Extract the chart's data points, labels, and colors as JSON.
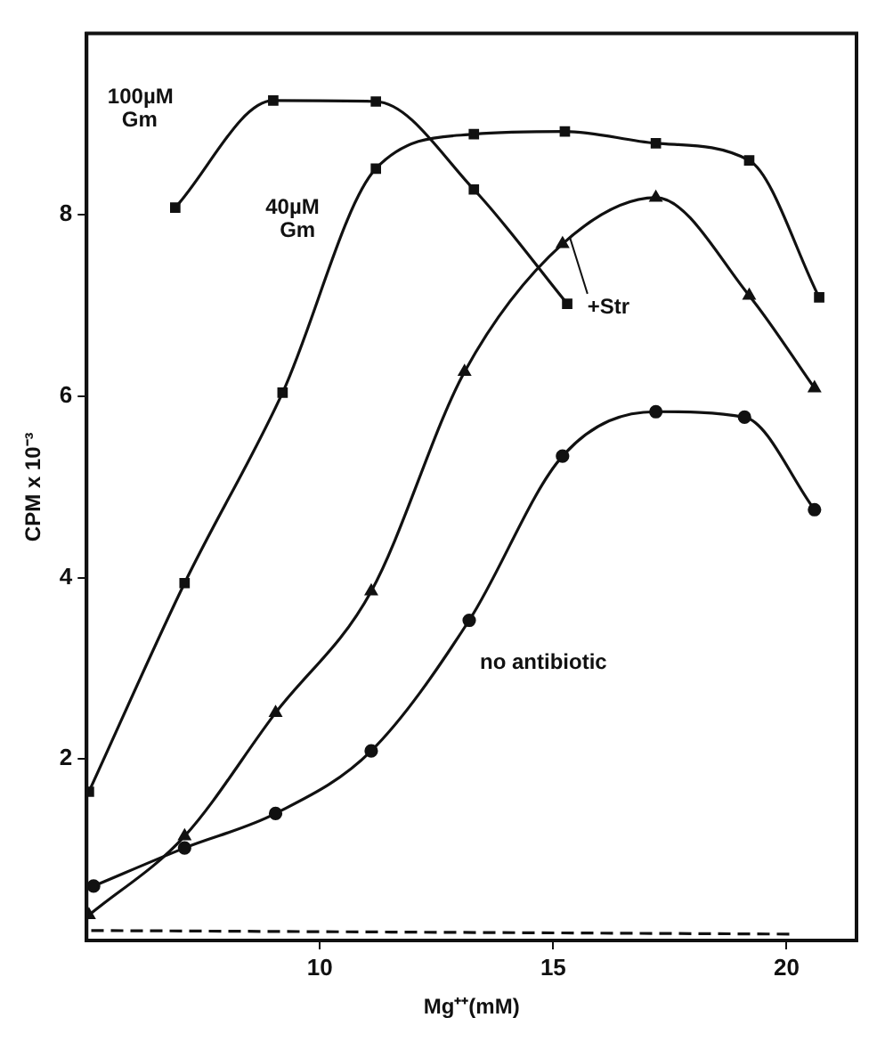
{
  "chart_data": {
    "type": "line",
    "xlabel": "Mg⁺⁺(mM)",
    "ylabel": "CPM x 10⁻³",
    "xlim": [
      5,
      21.5
    ],
    "ylim": [
      0,
      10
    ],
    "xticks": [
      10,
      15,
      20
    ],
    "yticks": [
      2,
      4,
      6,
      8
    ],
    "grid": false,
    "legend": false,
    "series": [
      {
        "name": "100µM Gm",
        "color": "#111111",
        "marker": "square",
        "x": [
          6.9,
          9.0,
          11.2,
          13.3,
          15.3
        ],
        "values": [
          8.08,
          9.26,
          9.25,
          8.28,
          7.02
        ]
      },
      {
        "name": "40µM Gm",
        "color": "#111111",
        "marker": "square",
        "x": [
          5.05,
          7.1,
          9.2,
          11.2,
          13.3,
          15.25,
          17.2,
          19.2,
          20.7
        ],
        "values": [
          1.64,
          3.94,
          6.04,
          8.51,
          8.89,
          8.92,
          8.79,
          8.6,
          7.09
        ]
      },
      {
        "name": "+Str",
        "color": "#111111",
        "marker": "triangle",
        "x": [
          5.05,
          7.1,
          9.05,
          11.1,
          13.1,
          15.2,
          17.2,
          19.2,
          20.6
        ],
        "values": [
          0.28,
          1.15,
          2.51,
          3.85,
          6.27,
          7.68,
          8.19,
          7.11,
          6.09
        ]
      },
      {
        "name": "no antibiotic",
        "color": "#111111",
        "marker": "circle",
        "x": [
          5.15,
          7.1,
          9.05,
          11.1,
          13.2,
          15.2,
          17.2,
          19.1,
          20.6
        ],
        "values": [
          0.6,
          1.02,
          1.4,
          2.09,
          3.53,
          5.34,
          5.83,
          5.77,
          4.75
        ]
      },
      {
        "color": "#111111",
        "marker": "none",
        "line_style": "dashed",
        "x": [
          5.1,
          20.15
        ],
        "values": [
          0.11,
          0.07
        ]
      }
    ]
  }
}
